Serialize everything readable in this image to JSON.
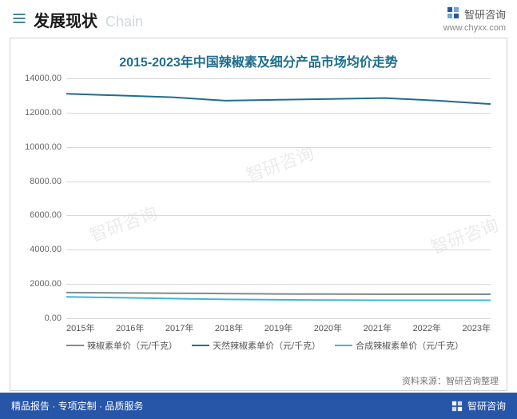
{
  "header": {
    "icon_name": "bars-icon",
    "title": "发展现状",
    "subtitle": "Chain",
    "brand_name": "智研咨询",
    "brand_url": "www.chyxx.com"
  },
  "chart": {
    "type": "line",
    "title": "2015-2023年中国辣椒素及细分产品市场均价走势",
    "title_color": "#1f6e8c",
    "title_fontsize": 16,
    "background_color": "#ffffff",
    "border_color": "#d0d0d0",
    "grid_color": "#d8d8d8",
    "x_categories": [
      "2015年",
      "2016年",
      "2017年",
      "2018年",
      "2019年",
      "2020年",
      "2021年",
      "2022年",
      "2023年"
    ],
    "ylim": [
      0,
      14000
    ],
    "ytick_step": 2000,
    "ytick_labels": [
      "0.00",
      "2000.00",
      "4000.00",
      "6000.00",
      "8000.00",
      "10000.00",
      "12000.00",
      "14000.00"
    ],
    "label_fontsize": 11,
    "label_color": "#666666",
    "line_width": 2,
    "series": [
      {
        "id": "capsaicin",
        "name": "辣椒素单价（元/千克）",
        "color": "#7f8c8d",
        "values": [
          1500,
          1480,
          1460,
          1440,
          1420,
          1410,
          1400,
          1400,
          1400
        ]
      },
      {
        "id": "natural",
        "name": "天然辣椒素单价（元/千克）",
        "color": "#1f6e8c",
        "values": [
          13100,
          13000,
          12900,
          12700,
          12750,
          12800,
          12850,
          12700,
          12500
        ]
      },
      {
        "id": "synthetic",
        "name": "合成辣椒素单价（元/千克）",
        "color": "#3fb6d6",
        "values": [
          1250,
          1200,
          1150,
          1100,
          1080,
          1060,
          1050,
          1050,
          1050
        ]
      }
    ],
    "legend_position": "bottom",
    "source_label": "资料来源：智研咨询整理",
    "watermarks": [
      "智研咨询",
      "智研咨询",
      "智研咨询"
    ]
  },
  "footer": {
    "left_text": "精品报告 · 专项定制 · 品质服务",
    "right_brand": "智研咨询"
  }
}
